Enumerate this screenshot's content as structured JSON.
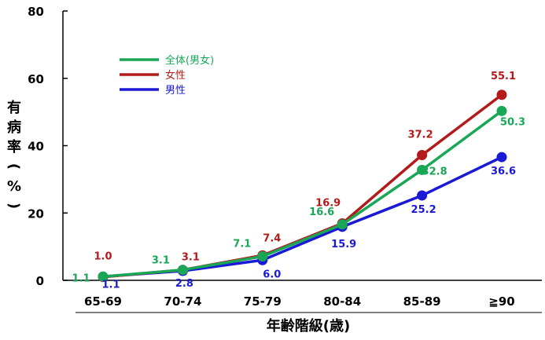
{
  "chart_data": {
    "type": "line",
    "categories": [
      "65-69",
      "70-74",
      "75-79",
      "80-84",
      "85-89",
      "≧90"
    ],
    "xlabel": "年齢階級(歳)",
    "ylabel": "有病率(%)",
    "ylim": [
      0,
      80
    ],
    "yticks": [
      "0",
      "20",
      "40",
      "60",
      "80"
    ],
    "grid": false,
    "legend_position": "top-left",
    "series": [
      {
        "name": "全体(男女)",
        "color": "#1aa657",
        "values": [
          1.1,
          3.1,
          7.1,
          16.6,
          32.8,
          50.3
        ],
        "labels": [
          "1.1",
          "3.1",
          "7.1",
          "16.6",
          "32.8",
          "50.3"
        ]
      },
      {
        "name": "女性",
        "color": "#b31b1b",
        "values": [
          1.0,
          3.1,
          7.4,
          16.9,
          37.2,
          55.1
        ],
        "labels": [
          "1.0",
          "3.1",
          "7.4",
          "16.9",
          "37.2",
          "55.1"
        ]
      },
      {
        "name": "男性",
        "color": "#1a1ad6",
        "values": [
          1.1,
          2.8,
          6.0,
          15.9,
          25.2,
          36.6
        ],
        "labels": [
          "1.1",
          "2.8",
          "6.0",
          "15.9",
          "25.2",
          "36.6"
        ]
      }
    ]
  }
}
